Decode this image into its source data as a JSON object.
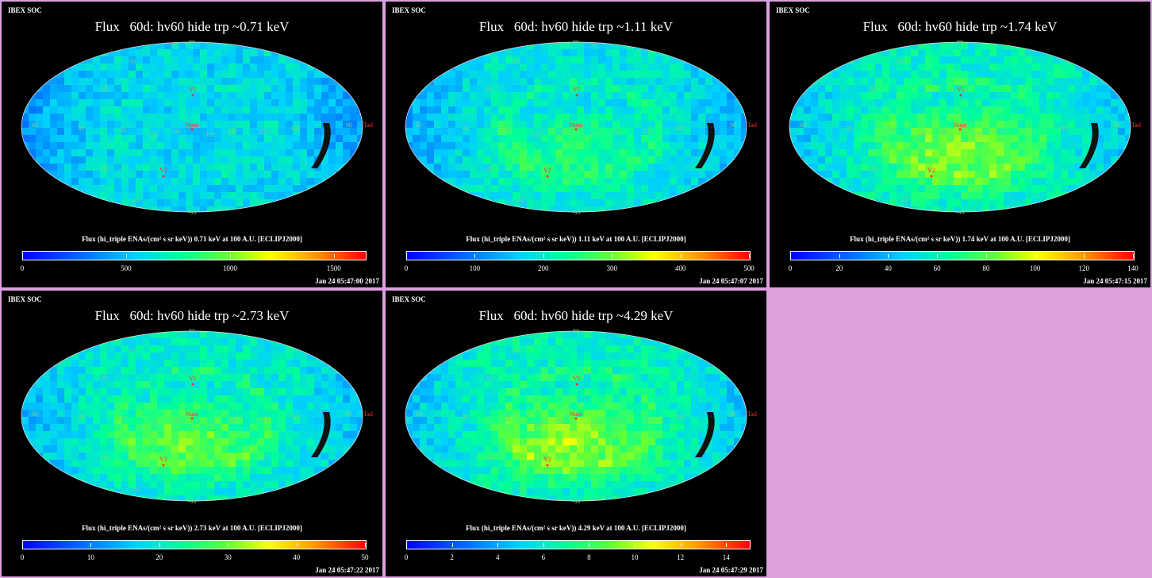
{
  "header": "IBEX SOC",
  "panels": [
    {
      "title": "Flux   60d: hv60 hide trp ~0.71 keV",
      "caption": "Flux (hi_triple ENAs/(cm² s sr keV))  0.71 keV at 100 A.U. [ECLIPJ2000]",
      "ticks": [
        "0",
        "500",
        "1000",
        "1500"
      ],
      "tick_values": [
        0,
        500,
        1000,
        1500
      ],
      "max": 1650,
      "timestamp": "Jan 24 05:47:00 2017",
      "base": 0.35,
      "hot": 0.0
    },
    {
      "title": "Flux   60d: hv60 hide trp ~1.11 keV",
      "caption": "Flux (hi_triple ENAs/(cm² s sr keV))  1.11 keV at 100 A.U. [ECLIPJ2000]",
      "ticks": [
        "0",
        "100",
        "200",
        "300",
        "400",
        "500"
      ],
      "tick_values": [
        0,
        100,
        200,
        300,
        400,
        500
      ],
      "max": 500,
      "timestamp": "Jan 24 05:47:07 2017",
      "base": 0.38,
      "hot": 0.08
    },
    {
      "title": "Flux   60d: hv60 hide trp ~1.74 keV",
      "caption": "Flux (hi_triple ENAs/(cm² s sr keV))  1.74 keV at 100 A.U. [ECLIPJ2000]",
      "ticks": [
        "0",
        "20",
        "40",
        "60",
        "80",
        "100",
        "120",
        "140"
      ],
      "tick_values": [
        0,
        20,
        40,
        60,
        80,
        100,
        120,
        140
      ],
      "max": 140,
      "timestamp": "Jan 24 05:47:15 2017",
      "base": 0.42,
      "hot": 0.15
    },
    {
      "title": "Flux   60d: hv60 hide trp ~2.73 keV",
      "caption": "Flux (hi_triple ENAs/(cm² s sr keV))  2.73 keV at 100 A.U. [ECLIPJ2000]",
      "ticks": [
        "0",
        "10",
        "20",
        "30",
        "40",
        "50"
      ],
      "tick_values": [
        0,
        10,
        20,
        30,
        40,
        50
      ],
      "max": 50,
      "timestamp": "Jan 24 05:47:22 2017",
      "base": 0.4,
      "hot": 0.14
    },
    {
      "title": "Flux   60d: hv60 hide trp ~4.29 keV",
      "caption": "Flux (hi_triple ENAs/(cm² s sr keV))  4.29 keV at 100 A.U. [ECLIPJ2000]",
      "ticks": [
        "0",
        "2",
        "4",
        "6",
        "8",
        "10",
        "12",
        "14"
      ],
      "tick_values": [
        0,
        2,
        4,
        6,
        8,
        10,
        12,
        14
      ],
      "max": 15,
      "timestamp": "Jan 24 05:47:29 2017",
      "base": 0.42,
      "hot": 0.16
    }
  ],
  "map_labels": {
    "nose": "Nose",
    "tail": "Tail",
    "v1": "V1",
    "v2": "V2",
    "lon": [
      "-60",
      "-90",
      "-120",
      "-150",
      "150",
      "120",
      "90",
      "60",
      "30",
      "-30"
    ],
    "lat": [
      "60",
      "30",
      "-30",
      "-60",
      "90",
      "-90"
    ]
  },
  "colors": {
    "background": "#000000",
    "page": "#dda0dd",
    "marker": "#ff3030",
    "grid": "#7fd07f"
  }
}
